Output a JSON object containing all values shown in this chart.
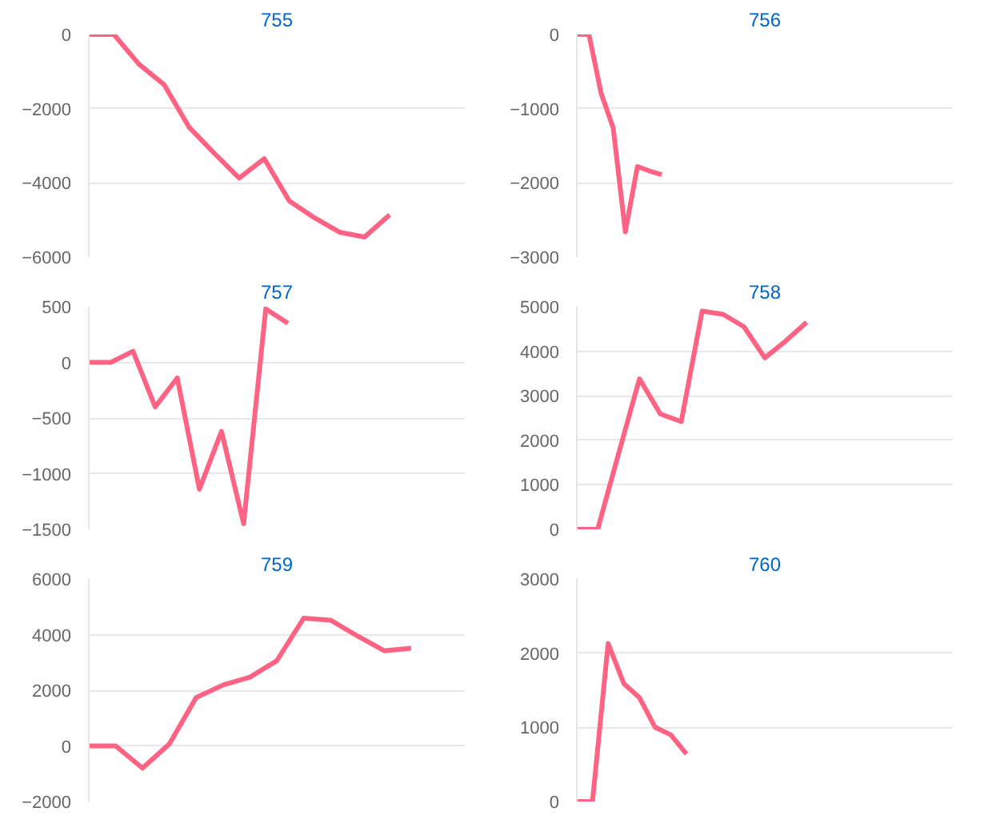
{
  "chart_data": [
    {
      "type": "line",
      "title": "755",
      "categories": [
        null,
        null,
        null,
        null,
        null,
        null,
        null,
        null,
        null,
        null,
        null,
        null,
        null,
        null,
        null,
        null
      ],
      "series": [
        {
          "color": "#ff6384",
          "values": [
            0,
            0,
            -800,
            -1350,
            -2500,
            -3200,
            -3870,
            -3350,
            -4490,
            -4940,
            -5330,
            -5460,
            -4860,
            null,
            null,
            null
          ]
        }
      ],
      "ylim": [
        -6000,
        0
      ],
      "yticks": [
        -6000,
        -4000,
        -2000,
        0
      ],
      "grid": "y",
      "tick_labels": "y",
      "marker": "none"
    },
    {
      "type": "line",
      "title": "756",
      "categories": [
        null,
        null,
        null,
        null,
        null,
        null,
        null,
        null,
        null,
        null,
        null,
        null,
        null,
        null,
        null,
        null,
        null,
        null,
        null,
        null,
        null,
        null,
        null,
        null,
        null,
        null,
        null,
        null,
        null,
        null,
        null,
        null
      ],
      "series": [
        {
          "color": "#ff6384",
          "values": [
            0,
            0,
            -790,
            -1260,
            -2660,
            -1780,
            -1840,
            -1890,
            null,
            null,
            null,
            null,
            null,
            null,
            null,
            null,
            null,
            null,
            null,
            null,
            null,
            null,
            null,
            null,
            null,
            null,
            null,
            null,
            null,
            null,
            null,
            null
          ]
        }
      ],
      "ylim": [
        -3000,
        0
      ],
      "yticks": [
        -3000,
        -2000,
        -1000,
        0
      ],
      "grid": "y",
      "tick_labels": "y",
      "marker": "none"
    },
    {
      "type": "line",
      "title": "757",
      "categories": [
        null,
        null,
        null,
        null,
        null,
        null,
        null,
        null,
        null,
        null,
        null,
        null,
        null,
        null,
        null,
        null,
        null,
        null
      ],
      "series": [
        {
          "color": "#ff6384",
          "values": [
            0,
            0,
            100,
            -400,
            -140,
            -1140,
            -620,
            -1450,
            480,
            350,
            null,
            null,
            null,
            null,
            null,
            null,
            null,
            null
          ]
        }
      ],
      "ylim": [
        -1500,
        500
      ],
      "yticks": [
        -1500,
        -1000,
        -500,
        0,
        500
      ],
      "grid": "y",
      "tick_labels": "y",
      "marker": "none"
    },
    {
      "type": "line",
      "title": "758",
      "categories": [
        null,
        null,
        null,
        null,
        null,
        null,
        null,
        null,
        null,
        null,
        null,
        null,
        null,
        null,
        null,
        null,
        null,
        null,
        null
      ],
      "series": [
        {
          "color": "#ff6384",
          "values": [
            0,
            0,
            1700,
            3380,
            2590,
            2420,
            4900,
            4830,
            4550,
            3850,
            4230,
            4650,
            null,
            null,
            null,
            null,
            null,
            null,
            null
          ]
        }
      ],
      "ylim": [
        0,
        5000
      ],
      "yticks": [
        0,
        1000,
        2000,
        3000,
        4000,
        5000
      ],
      "grid": "y",
      "tick_labels": "y",
      "marker": "none"
    },
    {
      "type": "line",
      "title": "759",
      "categories": [
        null,
        null,
        null,
        null,
        null,
        null,
        null,
        null,
        null,
        null,
        null,
        null,
        null,
        null,
        null
      ],
      "series": [
        {
          "color": "#ff6384",
          "values": [
            0,
            0,
            -800,
            70,
            1740,
            2190,
            2470,
            3060,
            4590,
            4520,
            3950,
            3420,
            3510,
            null,
            null
          ]
        }
      ],
      "ylim": [
        -2000,
        6000
      ],
      "yticks": [
        -2000,
        0,
        2000,
        4000,
        6000
      ],
      "grid": "y",
      "tick_labels": "y",
      "marker": "none"
    },
    {
      "type": "line",
      "title": "760",
      "categories": [
        null,
        null,
        null,
        null,
        null,
        null,
        null,
        null,
        null,
        null,
        null,
        null,
        null,
        null,
        null,
        null,
        null,
        null,
        null,
        null,
        null,
        null,
        null,
        null,
        null
      ],
      "series": [
        {
          "color": "#ff6384",
          "values": [
            0,
            0,
            2130,
            1590,
            1400,
            1000,
            900,
            640,
            null,
            null,
            null,
            null,
            null,
            null,
            null,
            null,
            null,
            null,
            null,
            null,
            null,
            null,
            null,
            null,
            null
          ]
        }
      ],
      "ylim": [
        0,
        3000
      ],
      "yticks": [
        0,
        1000,
        2000,
        3000
      ],
      "grid": "y",
      "tick_labels": "y",
      "marker": "none"
    }
  ]
}
